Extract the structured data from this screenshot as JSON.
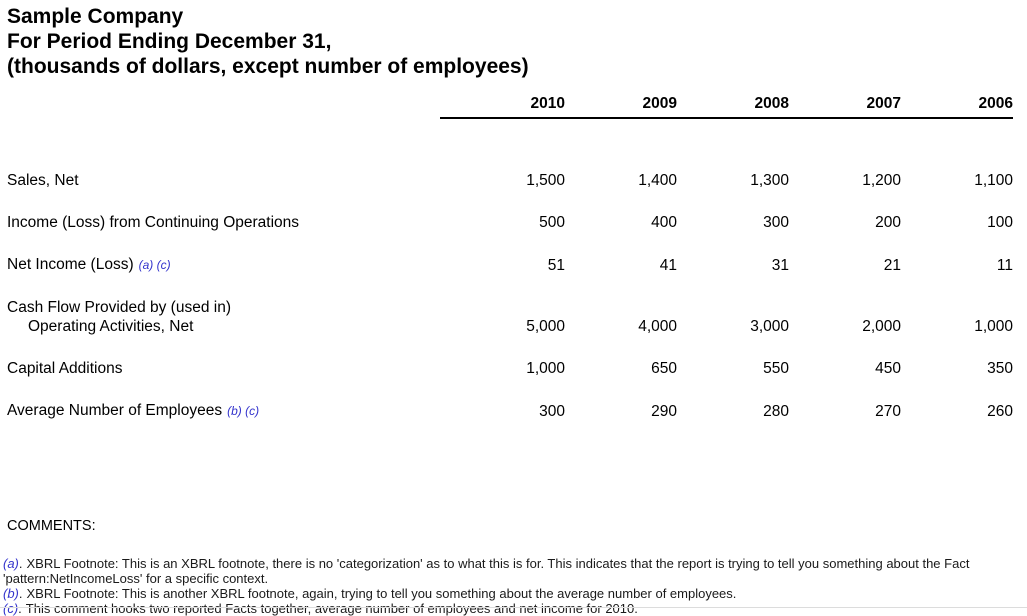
{
  "header": {
    "company": "Sample Company",
    "period": "For Period Ending December 31,",
    "units_note": "(thousands of dollars, except number of employees)"
  },
  "table": {
    "years": [
      "2010",
      "2009",
      "2008",
      "2007",
      "2006"
    ],
    "rows": [
      {
        "label": "Sales, Net",
        "values": [
          "1,500",
          "1,400",
          "1,300",
          "1,200",
          "1,100"
        ]
      },
      {
        "label": "Income (Loss) from Continuing Operations",
        "values": [
          "500",
          "400",
          "300",
          "200",
          "100"
        ]
      },
      {
        "label": "Net Income (Loss)",
        "footnotes": "(a) (c)",
        "values": [
          "51",
          "41",
          "31",
          "21",
          "11"
        ]
      },
      {
        "label": "Cash Flow Provided by (used in)",
        "label2": "Operating Activities, Net",
        "values": [
          "5,000",
          "4,000",
          "3,000",
          "2,000",
          "1,000"
        ]
      },
      {
        "label": "Capital Additions",
        "values": [
          "1,000",
          "650",
          "550",
          "450",
          "350"
        ]
      },
      {
        "label": "Average Number of Employees",
        "footnotes": "(b) (c)",
        "values": [
          "300",
          "290",
          "280",
          "270",
          "260"
        ]
      }
    ]
  },
  "comments": {
    "heading": "COMMENTS:",
    "marker_suffix": ".",
    "items": [
      {
        "marker": "(a)",
        "text": "XBRL Footnote: This is an XBRL footnote, there is no 'categorization' as to what this is for. This indicates that the report is trying to tell you something about the Fact 'pattern:NetIncomeLoss' for a specific context."
      },
      {
        "marker": "(b)",
        "text": "XBRL Footnote: This is another XBRL footnote, again, trying to tell you something about the average number of employees."
      },
      {
        "marker": "(c)",
        "text": "This comment hooks two reported Facts together, average number of employees and net income for 2010."
      }
    ]
  },
  "colors": {
    "text": "#000000",
    "footnote_blue": "#3333cc",
    "comment_text": "#1a1a1a"
  }
}
